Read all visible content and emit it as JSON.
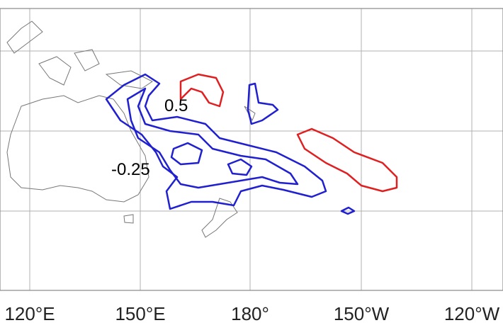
{
  "map": {
    "contour_labels": [
      "0.5",
      "-0.25"
    ],
    "longitude_labels": [
      "120°E",
      "150°E",
      "180°",
      "150°W",
      "120°W"
    ]
  }
}
